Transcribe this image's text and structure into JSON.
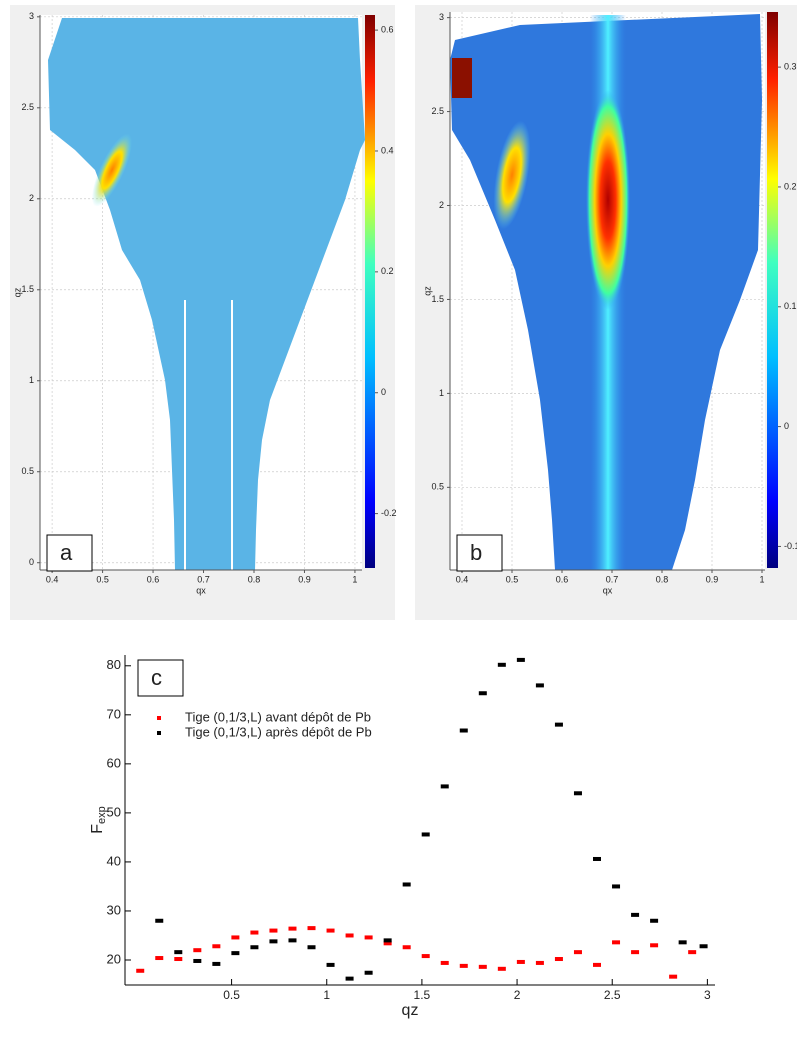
{
  "chart_data": [
    {
      "type": "heatmap",
      "label": "a",
      "xlabel": "qx",
      "ylabel": "qz",
      "xlim": [
        0.376,
        1.014
      ],
      "ylim": [
        -0.04,
        3.01
      ],
      "xticks": [
        0.4,
        0.5,
        0.6,
        0.7,
        0.8,
        0.9,
        1
      ],
      "yticks": [
        0,
        0.5,
        1,
        1.5,
        2,
        2.5,
        3
      ],
      "grid": true,
      "colorbar": {
        "lim": [
          -0.29,
          0.625
        ],
        "ticks": [
          -0.2,
          0,
          0.2,
          0.4,
          0.6
        ]
      }
    },
    {
      "type": "heatmap",
      "label": "b",
      "xlabel": "qx",
      "ylabel": "qz",
      "xlim": [
        0.376,
        1.006
      ],
      "ylim": [
        0.06,
        3.03
      ],
      "xticks": [
        0.4,
        0.5,
        0.6,
        0.7,
        0.8,
        0.9,
        1
      ],
      "yticks": [
        0.5,
        1,
        1.5,
        2,
        2.5,
        3
      ],
      "grid": true,
      "colorbar": {
        "lim": [
          -0.118,
          0.346
        ],
        "ticks": [
          -0.1,
          0,
          0.1,
          0.2,
          0.3
        ]
      }
    },
    {
      "type": "scatter",
      "label": "c",
      "xlabel": "qz",
      "ylabel": "F",
      "ylabel_subscript": "exp",
      "xlim": [
        -0.06,
        3.04
      ],
      "ylim": [
        14.9,
        82.2
      ],
      "xticks": [
        0.5,
        1,
        1.5,
        2,
        2.5,
        3
      ],
      "yticks": [
        20,
        30,
        40,
        50,
        60,
        70,
        80
      ],
      "series": [
        {
          "name": "Tige (0,1/3,L) avant dépôt de Pb",
          "color": "#ff0000",
          "x": [
            0.02,
            0.12,
            0.22,
            0.32,
            0.42,
            0.52,
            0.62,
            0.72,
            0.82,
            0.92,
            1.02,
            1.12,
            1.22,
            1.32,
            1.42,
            1.52,
            1.62,
            1.72,
            1.82,
            1.92,
            2.02,
            2.12,
            2.22,
            2.32,
            2.42,
            2.52,
            2.62,
            2.72,
            2.82,
            2.92
          ],
          "values": [
            17.8,
            20.4,
            20.2,
            22.0,
            22.8,
            24.6,
            25.6,
            26.0,
            26.4,
            26.5,
            26.0,
            25.0,
            24.6,
            23.4,
            22.6,
            20.8,
            19.4,
            18.8,
            18.6,
            18.2,
            19.6,
            19.4,
            20.2,
            21.6,
            19.0,
            23.6,
            21.6,
            23.0,
            16.6,
            21.6
          ]
        },
        {
          "name": "Tige (0,1/3,L) après dépôt de Pb",
          "color": "#000000",
          "x": [
            0.12,
            0.22,
            0.32,
            0.42,
            0.52,
            0.62,
            0.72,
            0.82,
            0.92,
            1.02,
            1.12,
            1.22,
            1.32,
            1.42,
            1.52,
            1.62,
            1.72,
            1.82,
            1.92,
            2.02,
            2.12,
            2.22,
            2.32,
            2.42,
            2.52,
            2.62,
            2.72,
            2.87,
            2.98
          ],
          "values": [
            28.0,
            21.6,
            19.8,
            19.2,
            21.4,
            22.6,
            23.8,
            24.0,
            22.6,
            19.0,
            16.2,
            17.4,
            24.0,
            35.4,
            45.6,
            55.4,
            66.8,
            74.4,
            80.2,
            81.2,
            76.0,
            68.0,
            54.0,
            40.6,
            35.0,
            29.2,
            28.0,
            23.6,
            22.8
          ]
        }
      ]
    }
  ]
}
